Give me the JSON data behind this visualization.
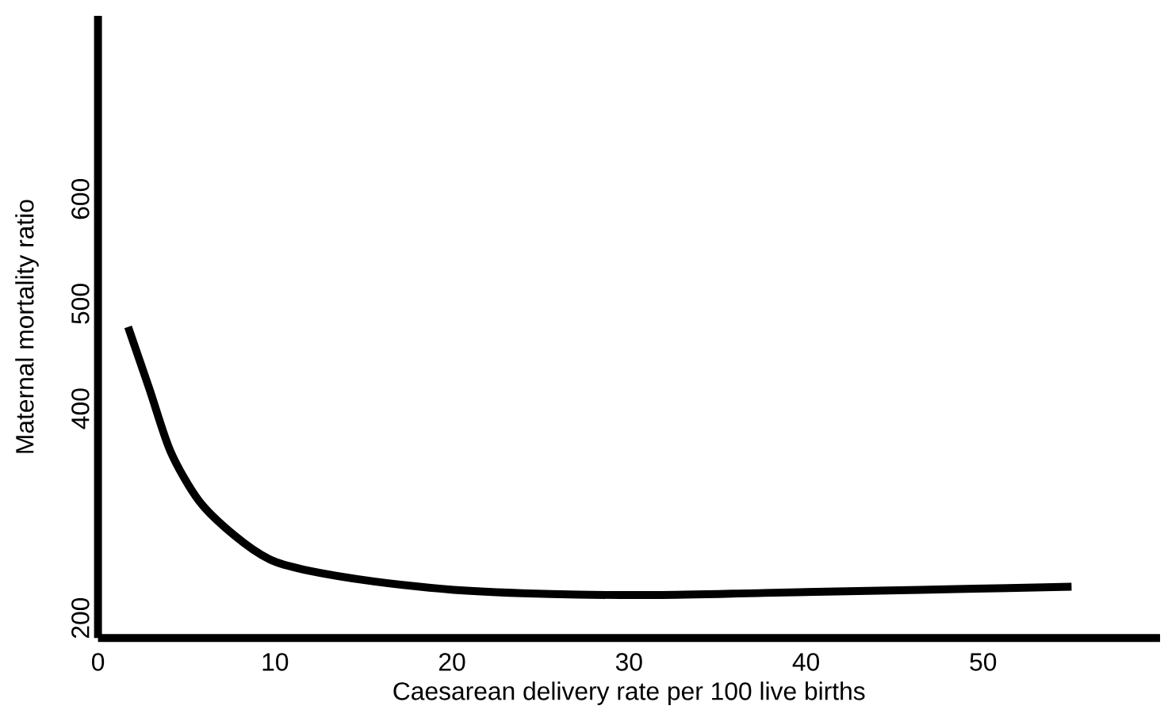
{
  "chart_data": {
    "type": "line",
    "xlabel": "Caesarean delivery rate per 100 live births",
    "ylabel": "Maternal mortality ratio",
    "x": [
      1.7,
      2.9,
      4.1,
      5.7,
      7.7,
      9.7,
      11.7,
      15.6,
      20.1,
      25.6,
      31.5,
      37.6,
      43.5,
      49.5,
      55.0
    ],
    "series": [
      {
        "color": "#000000",
        "values": [
          478,
          419,
          359,
          312,
          279,
          256,
          246,
          235,
          227,
          223,
          222,
          224,
          226,
          228,
          230
        ]
      }
    ],
    "xlim": [
      0,
      60
    ],
    "ylim": [
      181,
      775
    ],
    "xticks": [
      0,
      10,
      20,
      30,
      40,
      50
    ],
    "yticks": [
      200,
      400,
      500,
      600
    ],
    "marker": "none",
    "line_style": "solid"
  }
}
